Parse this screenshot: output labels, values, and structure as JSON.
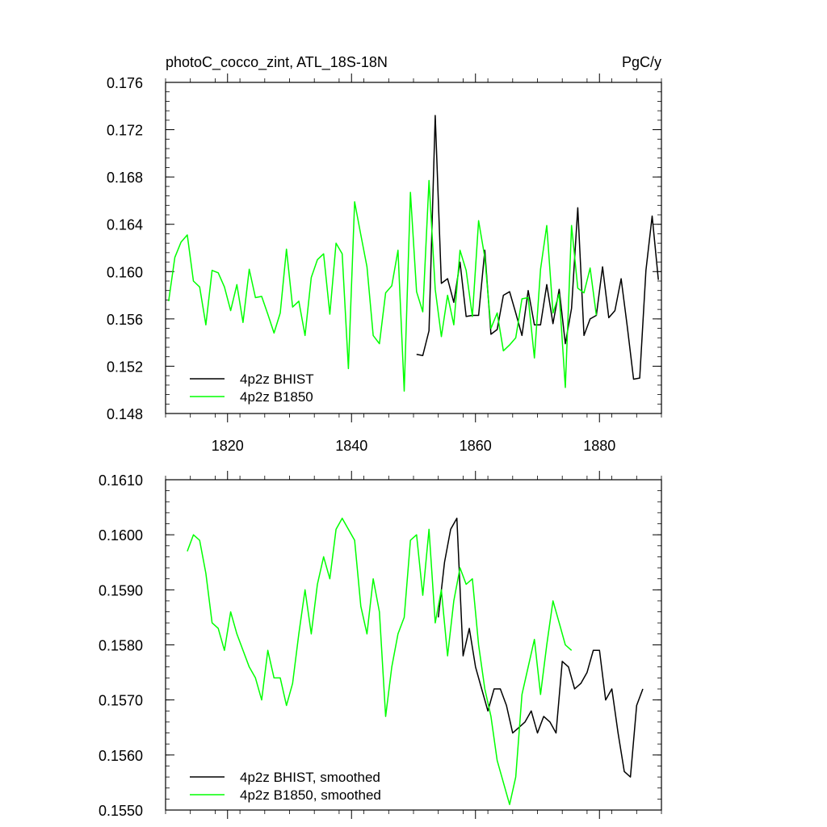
{
  "chart_data": [
    {
      "type": "line",
      "title": "photoC_cocco_zint, ATL_18S-18N",
      "units": "PgC/y",
      "xlabel": "",
      "ylabel": "",
      "xlim": [
        1810,
        1890
      ],
      "ylim": [
        0.148,
        0.176
      ],
      "xticks": [
        1820,
        1840,
        1860,
        1880
      ],
      "yticks": [
        0.148,
        0.152,
        0.156,
        0.16,
        0.164,
        0.168,
        0.172,
        0.176
      ],
      "xtick_labels": [
        "1820",
        "1840",
        "1860",
        "1880"
      ],
      "ytick_labels": [
        "0.148",
        "0.152",
        "0.156",
        "0.160",
        "0.164",
        "0.168",
        "0.172",
        "0.176"
      ],
      "grid": false,
      "legend_position": "bottom-left",
      "series": [
        {
          "name": "4p2z BHIST",
          "color": "#000000",
          "x_start": 1850.5,
          "values": [
            0.153,
            0.1529,
            0.155,
            0.1732,
            0.159,
            0.1594,
            0.1574,
            0.1608,
            0.1562,
            0.1563,
            0.1563,
            0.1618,
            0.1547,
            0.1551,
            0.158,
            0.1583,
            0.1565,
            0.1546,
            0.1584,
            0.1555,
            0.1555,
            0.1589,
            0.1556,
            0.1585,
            0.1539,
            0.1569,
            0.1654,
            0.1546,
            0.156,
            0.1563,
            0.1604,
            0.1561,
            0.1567,
            0.1594,
            0.1553,
            0.1509,
            0.151,
            0.1601,
            0.1647,
            0.1593
          ]
        },
        {
          "name": "4p2z B1850",
          "color": "#00ff00",
          "x_start": 1810.5,
          "values": [
            0.1575,
            0.1612,
            0.1625,
            0.1631,
            0.1592,
            0.1587,
            0.1555,
            0.1601,
            0.1599,
            0.1587,
            0.1567,
            0.1589,
            0.1557,
            0.1602,
            0.1578,
            0.1579,
            0.1564,
            0.1548,
            0.1565,
            0.1619,
            0.157,
            0.1575,
            0.1546,
            0.1595,
            0.161,
            0.1615,
            0.1564,
            0.1624,
            0.1615,
            0.1518,
            0.1659,
            0.1631,
            0.1604,
            0.1546,
            0.1539,
            0.1582,
            0.1588,
            0.1618,
            0.1499,
            0.1667,
            0.1583,
            0.1566,
            0.1677,
            0.1585,
            0.1545,
            0.158,
            0.1555,
            0.1618,
            0.1601,
            0.1562,
            0.1643,
            0.1612,
            0.1552,
            0.1565,
            0.1533,
            0.1538,
            0.1544,
            0.1577,
            0.1578,
            0.1527,
            0.1602,
            0.1639,
            0.1565,
            0.1581,
            0.1502,
            0.1639,
            0.1586,
            0.1582,
            0.1603,
            0.1563
          ]
        }
      ]
    },
    {
      "type": "line",
      "title": "",
      "xlabel": "",
      "ylabel": "",
      "xlim": [
        1810,
        1890
      ],
      "ylim": [
        0.155,
        0.161
      ],
      "xticks": [
        1820,
        1840,
        1860,
        1880
      ],
      "yticks": [
        0.155,
        0.156,
        0.157,
        0.158,
        0.159,
        0.16,
        0.161
      ],
      "xtick_labels": [],
      "ytick_labels": [
        "0.1550",
        "0.1560",
        "0.1570",
        "0.1580",
        "0.1590",
        "0.1600",
        "0.1610"
      ],
      "grid": false,
      "legend_position": "bottom-left",
      "series": [
        {
          "name": "4p2z BHIST, smoothed",
          "color": "#000000",
          "x_start": 1854,
          "values": [
            0.1585,
            0.1595,
            0.1601,
            0.1603,
            0.1578,
            0.1583,
            0.1576,
            0.1572,
            0.1568,
            0.1572,
            0.1572,
            0.1569,
            0.1564,
            0.1565,
            0.1566,
            0.1568,
            0.1564,
            0.1567,
            0.1566,
            0.1564,
            0.1577,
            0.1576,
            0.1572,
            0.1573,
            0.1575,
            0.1579,
            0.1579,
            0.157,
            0.1572,
            0.1564,
            0.1557,
            0.1556,
            0.1569,
            0.1572
          ]
        },
        {
          "name": "4p2z B1850, smoothed",
          "color": "#00ff00",
          "x_start": 1813.5,
          "values": [
            0.1597,
            0.16,
            0.1599,
            0.1593,
            0.1584,
            0.1583,
            0.1579,
            0.1586,
            0.1582,
            0.1579,
            0.1576,
            0.1574,
            0.157,
            0.1579,
            0.1574,
            0.1574,
            0.1569,
            0.1573,
            0.1582,
            0.159,
            0.1582,
            0.1591,
            0.1596,
            0.1592,
            0.1601,
            0.1603,
            0.1601,
            0.1599,
            0.1587,
            0.1582,
            0.1592,
            0.1586,
            0.1567,
            0.1576,
            0.1582,
            0.1585,
            0.1599,
            0.16,
            0.1589,
            0.1601,
            0.1584,
            0.159,
            0.1578,
            0.1588,
            0.1594,
            0.1591,
            0.1592,
            0.158,
            0.1572,
            0.1567,
            0.1559,
            0.1555,
            0.1551,
            0.1556,
            0.1571,
            0.1576,
            0.1581,
            0.1571,
            0.158,
            0.1588,
            0.1584,
            0.158,
            0.1579
          ]
        }
      ]
    }
  ]
}
